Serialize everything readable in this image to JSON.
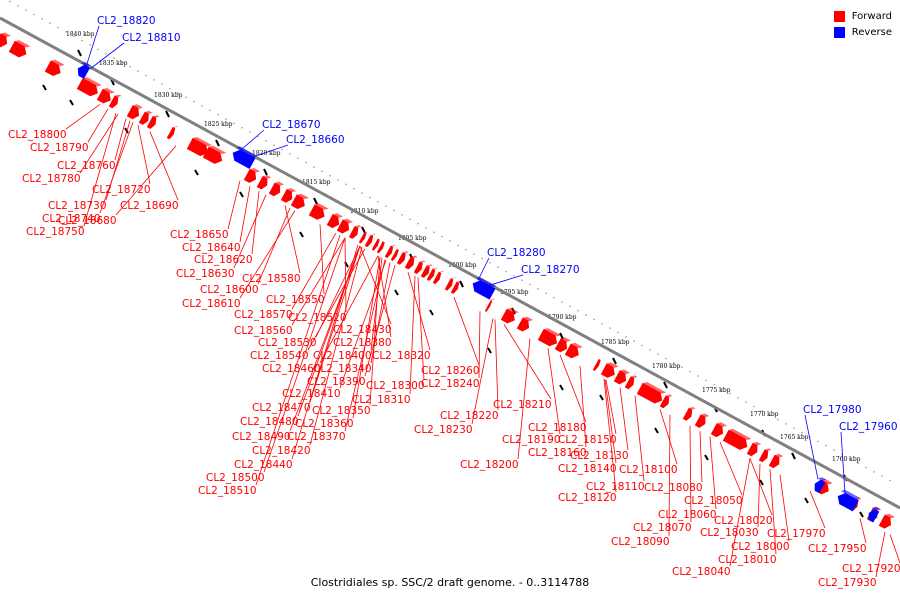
{
  "title": "Clostridiales sp. SSC/2 draft genome. - 0..3114788",
  "legend": [
    {
      "label": "Forward",
      "color": "#ff0000"
    },
    {
      "label": "Reverse",
      "color": "#0000ff"
    }
  ],
  "colors": {
    "forward": "#ff0000",
    "reverse": "#0000ff",
    "backbone": "#808080",
    "dots": "#aaaaaa"
  },
  "ticks": [
    "1840 kbp",
    "1835 kbp",
    "1830 kbp",
    "1825 kbp",
    "1820 kbp",
    "1815 kbp",
    "1810 kbp",
    "1805 kbp",
    "1800 kbp",
    "1795 kbp",
    "1790 kbp",
    "1785 kbp",
    "1780 kbp",
    "1775 kbp",
    "1770 kbp",
    "1765 kbp",
    "1760 kbp"
  ],
  "forward_labels": [
    "CL2_18800",
    "CL2_18790",
    "CL2_18760",
    "CL2_18780",
    "CL2_18720",
    "CL2_18690",
    "CL2_18730",
    "CL2_18740",
    "CL2_18680",
    "CL2_18750",
    "CL2_18650",
    "CL2_18640",
    "CL2_18620",
    "CL2_18630",
    "CL2_18580",
    "CL2_18600",
    "CL2_18610",
    "CL2_18550",
    "CL2_18570",
    "CL2_18520",
    "CL2_18560",
    "CL2_18430",
    "CL2_18530",
    "CL2_18380",
    "CL2_18540",
    "CL2_18400",
    "CL2_18320",
    "CL2_18460",
    "CL2_18340",
    "CL2_18260",
    "CL2_18390",
    "CL2_18300",
    "CL2_18240",
    "CL2_18410",
    "CL2_18310",
    "CL2_18470",
    "CL2_18350",
    "CL2_18480",
    "CL2_18360",
    "CL2_18490",
    "CL2_18370",
    "CL2_18420",
    "CL2_18440",
    "CL2_18500",
    "CL2_18510",
    "CL2_18210",
    "CL2_18220",
    "CL2_18230",
    "CL2_18180",
    "CL2_18190",
    "CL2_18150",
    "CL2_18160",
    "CL2_18130",
    "CL2_18200",
    "CL2_18140",
    "CL2_18100",
    "CL2_18110",
    "CL2_18120",
    "CL2_18080",
    "CL2_18050",
    "CL2_18060",
    "CL2_18020",
    "CL2_18070",
    "CL2_18030",
    "CL2_18090",
    "CL2_18000",
    "CL2_18010",
    "CL2_18040",
    "CL2_17970",
    "CL2_17950",
    "CL2_17920",
    "CL2_17930"
  ],
  "reverse_labels": [
    "CL2_18820",
    "CL2_18810",
    "CL2_18670",
    "CL2_18660",
    "CL2_18280",
    "CL2_18270",
    "CL2_17980",
    "CL2_17960"
  ]
}
